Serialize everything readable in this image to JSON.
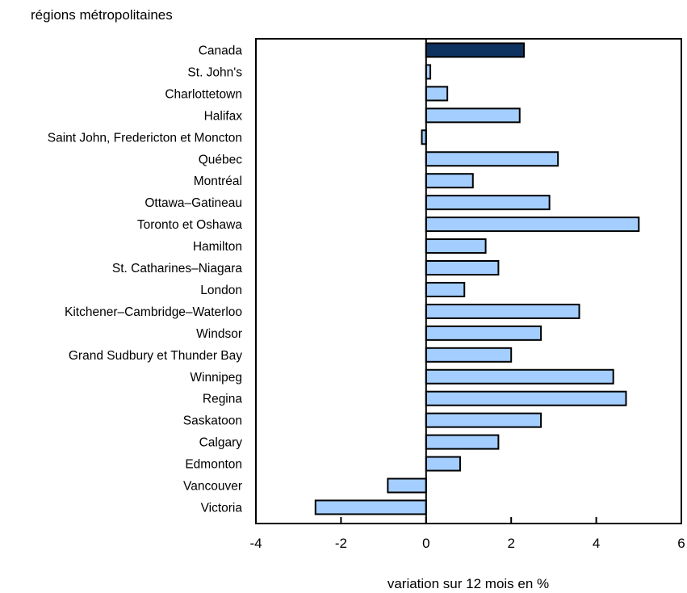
{
  "chart_data": {
    "type": "bar",
    "orientation": "horizontal",
    "title": "régions métropolitaines",
    "xlabel": "variation sur 12 mois en %",
    "ylabel": "",
    "xlim": [
      -4,
      6
    ],
    "x_ticks": [
      -4,
      -2,
      0,
      2,
      4,
      6
    ],
    "grid": false,
    "legend": "none",
    "categories": [
      "Canada",
      "St. John's",
      "Charlottetown",
      "Halifax",
      "Saint John, Fredericton et Moncton",
      "Québec",
      "Montréal",
      "Ottawa–Gatineau",
      "Toronto et Oshawa",
      "Hamilton",
      "St. Catharines–Niagara",
      "London",
      "Kitchener–Cambridge–Waterloo",
      "Windsor",
      "Grand Sudbury et Thunder Bay",
      "Winnipeg",
      "Regina",
      "Saskatoon",
      "Calgary",
      "Edmonton",
      "Vancouver",
      "Victoria"
    ],
    "values": [
      2.3,
      0.1,
      0.5,
      2.2,
      -0.1,
      3.1,
      1.1,
      2.9,
      5.0,
      1.4,
      1.7,
      0.9,
      3.6,
      2.7,
      2.0,
      4.4,
      4.7,
      2.7,
      1.7,
      0.8,
      -0.9,
      -2.6
    ],
    "colors": {
      "highlight": "#0f3361",
      "bar": "#a3ceff",
      "stroke": "#000000"
    },
    "highlight_index": 0
  }
}
